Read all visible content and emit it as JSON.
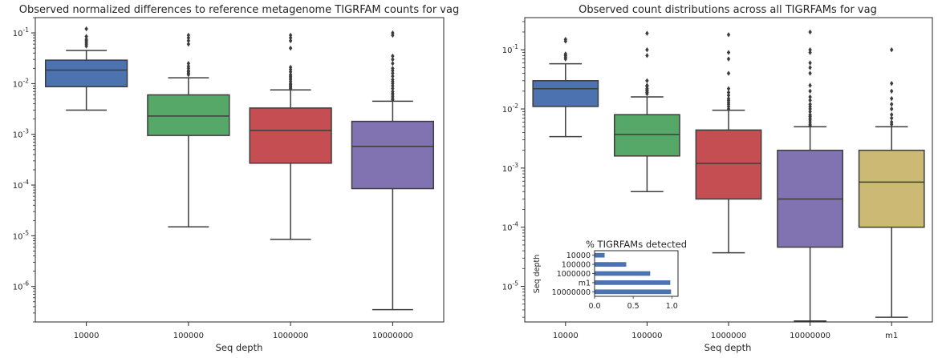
{
  "chart_data": [
    {
      "type": "box",
      "title": "Observed normalized differences to reference metagenome TIGRFAM counts for vag",
      "xlabel": "Seq depth",
      "ylabel": "",
      "yscale": "log",
      "ylim": [
        2e-07,
        0.2
      ],
      "ytick_labels": [
        "10",
        "10",
        "10",
        "10",
        "10",
        "10"
      ],
      "ytick_exponents": [
        "-6",
        "-5",
        "-4",
        "-3",
        "-2",
        "-1"
      ],
      "ytick_values": [
        1e-06,
        1e-05,
        0.0001,
        0.001,
        0.01,
        0.1
      ],
      "categories": [
        "10000",
        "100000",
        "1000000",
        "10000000"
      ],
      "colors": [
        "#4c72b0",
        "#55a868",
        "#c44e52",
        "#8172b2"
      ],
      "boxes": [
        {
          "whislo": 0.003,
          "q1": 0.0087,
          "med": 0.0185,
          "q3": 0.029,
          "whishi": 0.045,
          "fliers": [
            0.055,
            0.06,
            0.065,
            0.07,
            0.075,
            0.085,
            0.12
          ]
        },
        {
          "whislo": 1.5e-05,
          "q1": 0.00095,
          "med": 0.0023,
          "q3": 0.006,
          "whishi": 0.013,
          "fliers": [
            0.015,
            0.016,
            0.017,
            0.018,
            0.02,
            0.022,
            0.025,
            0.06,
            0.07,
            0.08,
            0.09
          ]
        },
        {
          "whislo": 8.5e-06,
          "q1": 0.00027,
          "med": 0.0012,
          "q3": 0.0033,
          "whishi": 0.0075,
          "fliers": [
            0.008,
            0.0085,
            0.009,
            0.0095,
            0.01,
            0.011,
            0.012,
            0.013,
            0.014,
            0.015,
            0.017,
            0.019,
            0.021,
            0.05,
            0.07,
            0.08,
            0.09
          ]
        },
        {
          "whislo": 3.5e-07,
          "q1": 8.5e-05,
          "med": 0.00058,
          "q3": 0.0018,
          "whishi": 0.0045,
          "fliers": [
            0.0048,
            0.005,
            0.0055,
            0.006,
            0.0065,
            0.007,
            0.008,
            0.009,
            0.01,
            0.011,
            0.012,
            0.014,
            0.016,
            0.018,
            0.02,
            0.025,
            0.03,
            0.035,
            0.09,
            0.1
          ]
        }
      ]
    },
    {
      "type": "box",
      "title": "Observed count distributions across all TIGRFAMs for vag",
      "xlabel": "Seq depth",
      "ylabel": "",
      "yscale": "log",
      "ylim": [
        2.5e-06,
        0.35
      ],
      "ytick_labels": [
        "10",
        "10",
        "10",
        "10",
        "10"
      ],
      "ytick_exponents": [
        "-5",
        "-4",
        "-3",
        "-2",
        "-1"
      ],
      "ytick_values": [
        1e-05,
        0.0001,
        0.001,
        0.01,
        0.1
      ],
      "categories": [
        "10000",
        "100000",
        "1000000",
        "10000000",
        "m1"
      ],
      "colors": [
        "#4c72b0",
        "#55a868",
        "#c44e52",
        "#8172b2",
        "#ccb974"
      ],
      "boxes": [
        {
          "whislo": 0.0034,
          "q1": 0.011,
          "med": 0.022,
          "q3": 0.03,
          "whishi": 0.058,
          "fliers": [
            0.07,
            0.075,
            0.08,
            0.085,
            0.14,
            0.15
          ]
        },
        {
          "whislo": 0.0004,
          "q1": 0.0016,
          "med": 0.0037,
          "q3": 0.008,
          "whishi": 0.016,
          "fliers": [
            0.018,
            0.019,
            0.02,
            0.021,
            0.022,
            0.024,
            0.025,
            0.03,
            0.08,
            0.1,
            0.19
          ]
        },
        {
          "whislo": 3.7e-05,
          "q1": 0.0003,
          "med": 0.0012,
          "q3": 0.0044,
          "whishi": 0.0095,
          "fliers": [
            0.01,
            0.011,
            0.012,
            0.013,
            0.014,
            0.015,
            0.017,
            0.019,
            0.022,
            0.04,
            0.07,
            0.09,
            0.18
          ]
        },
        {
          "whislo": 2.6e-06,
          "q1": 4.6e-05,
          "med": 0.0003,
          "q3": 0.002,
          "whishi": 0.005,
          "fliers": [
            0.0052,
            0.0055,
            0.006,
            0.0065,
            0.007,
            0.0075,
            0.008,
            0.009,
            0.01,
            0.011,
            0.012,
            0.014,
            0.016,
            0.02,
            0.025,
            0.04,
            0.05,
            0.06,
            0.09,
            0.1,
            0.2
          ]
        },
        {
          "whislo": 3e-06,
          "q1": 0.0001,
          "med": 0.00058,
          "q3": 0.002,
          "whishi": 0.005,
          "fliers": [
            0.0055,
            0.006,
            0.007,
            0.008,
            0.01,
            0.012,
            0.015,
            0.02,
            0.027,
            0.1
          ]
        }
      ],
      "inset": {
        "type": "barh",
        "title": "% TIGRFAMs detected",
        "ylabel": "Seq depth",
        "categories": [
          "10000",
          "100000",
          "1000000",
          "m1",
          "10000000"
        ],
        "values": [
          0.13,
          0.41,
          0.72,
          0.98,
          0.99
        ],
        "xlim": [
          0,
          1.08
        ],
        "xticks": [
          0,
          0.5,
          1.0
        ],
        "xtick_labels": [
          "0.0",
          "0.5",
          "1.0"
        ],
        "color": "#4c72b0"
      }
    }
  ]
}
